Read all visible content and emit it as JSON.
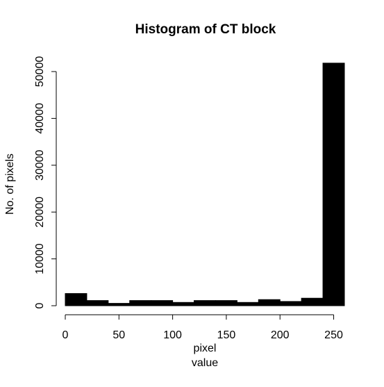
{
  "chart_data": {
    "type": "bar",
    "title": "Histogram of CT block",
    "xlabel": [
      "pixel",
      "value"
    ],
    "ylabel": "No. of pixels",
    "bin_edges": [
      0,
      20,
      40,
      60,
      80,
      100,
      120,
      140,
      160,
      180,
      200,
      220,
      240,
      260
    ],
    "values": [
      2600,
      1100,
      500,
      1100,
      1100,
      700,
      1100,
      1100,
      700,
      1300,
      900,
      1600,
      51800
    ],
    "xlim": [
      0,
      260
    ],
    "ylim": [
      0,
      52000
    ],
    "x_ticks": [
      0,
      50,
      100,
      150,
      200,
      250
    ],
    "x_tick_labels": [
      "0",
      "50",
      "100",
      "150",
      "200",
      "250"
    ],
    "y_ticks": [
      0,
      10000,
      20000,
      30000,
      40000,
      50000
    ],
    "y_tick_labels": [
      "0",
      "10000",
      "20000",
      "30000",
      "40000",
      "50000"
    ],
    "bar_color": "#000000",
    "grid": false,
    "legend": "none"
  }
}
